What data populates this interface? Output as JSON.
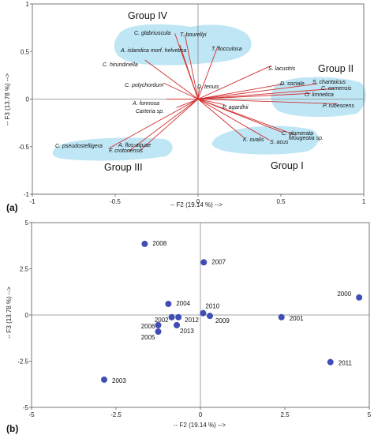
{
  "chart_data": [
    {
      "panel_label": "(a)",
      "type": "biplot",
      "xlabel": "-- F2 (19.14 %) -->",
      "ylabel": "-- F3 (13.78 %) -->",
      "xlim": [
        -1,
        1
      ],
      "ylim": [
        -1,
        1
      ],
      "x_ticks": [
        "-1",
        "-0.5",
        "0",
        "0.5",
        "1"
      ],
      "y_ticks": [
        "1",
        "0.5",
        "0",
        "-0.5",
        "-1"
      ],
      "grid": false,
      "vector_color": "#d32f2f",
      "group_fill": "#bfe6f5",
      "groups": [
        {
          "name": "Group IV"
        },
        {
          "name": "Group II"
        },
        {
          "name": "Group III"
        },
        {
          "name": "Group I"
        }
      ],
      "vectors": [
        {
          "name": "C. glabriuscula",
          "x": -0.14,
          "y": 0.69
        },
        {
          "name": "T. bourellyi",
          "x": -0.08,
          "y": 0.68
        },
        {
          "name": "A. islandica morf. helvetica",
          "x": -0.11,
          "y": 0.57
        },
        {
          "name": "T. flocculosa",
          "x": 0.12,
          "y": 0.56
        },
        {
          "name": "C. hirundinella",
          "x": -0.32,
          "y": 0.41
        },
        {
          "name": "C. polychordum",
          "x": -0.21,
          "y": 0.17
        },
        {
          "name": "D. tenuis",
          "x": 0.01,
          "y": 0.13
        },
        {
          "name": "S. lacustris",
          "x": 0.44,
          "y": 0.35
        },
        {
          "name": "D. sociale",
          "x": 0.52,
          "y": 0.16
        },
        {
          "name": "S. chantaicus",
          "x": 0.72,
          "y": 0.16
        },
        {
          "name": "C. comensis",
          "x": 0.82,
          "y": 0.11
        },
        {
          "name": "O. limnetica",
          "x": 0.68,
          "y": 0.06
        },
        {
          "name": "P. rubescens",
          "x": 0.84,
          "y": -0.05
        },
        {
          "name": "A. formosa",
          "x": -0.19,
          "y": 0.0
        },
        {
          "name": "Carteria sp.",
          "x": -0.13,
          "y": -0.09
        },
        {
          "name": "P. agardhii",
          "x": 0.16,
          "y": -0.06
        },
        {
          "name": "C. glomerata",
          "x": 0.51,
          "y": -0.35
        },
        {
          "name": "Mougeotia sp.",
          "x": 0.59,
          "y": -0.38
        },
        {
          "name": "K. ovalis",
          "x": 0.28,
          "y": -0.41
        },
        {
          "name": "S. acus",
          "x": 0.43,
          "y": -0.43
        },
        {
          "name": "C. pseudostelligera",
          "x": -0.54,
          "y": -0.52
        },
        {
          "name": "A. flos-aquae",
          "x": -0.35,
          "y": -0.54
        },
        {
          "name": "F. crotonensis",
          "x": -0.42,
          "y": -0.55
        }
      ]
    },
    {
      "panel_label": "(b)",
      "type": "scatter",
      "xlabel": "-- F2 (19.14 %) -->",
      "ylabel": "-- F3 (13.78 %) -->",
      "xlim": [
        -5,
        5
      ],
      "ylim": [
        -5,
        5
      ],
      "x_ticks": [
        "-5",
        "-2.5",
        "0",
        "2.5",
        "5"
      ],
      "y_ticks": [
        "5",
        "2.5",
        "0",
        "-2.5",
        "-5"
      ],
      "grid": false,
      "marker_color": "#3f4db5",
      "points": [
        {
          "label": "2008",
          "x": -1.65,
          "y": 3.85
        },
        {
          "label": "2007",
          "x": 0.1,
          "y": 2.85
        },
        {
          "label": "2004",
          "x": -0.95,
          "y": 0.6
        },
        {
          "label": "2010",
          "x": 0.08,
          "y": 0.1
        },
        {
          "label": "2009",
          "x": 0.28,
          "y": -0.05
        },
        {
          "label": "2002",
          "x": -0.85,
          "y": -0.12
        },
        {
          "label": "2012",
          "x": -0.65,
          "y": -0.12
        },
        {
          "label": "2006",
          "x": -1.25,
          "y": -0.55
        },
        {
          "label": "2013",
          "x": -0.7,
          "y": -0.55
        },
        {
          "label": "2005",
          "x": -1.25,
          "y": -0.9
        },
        {
          "label": "2001",
          "x": 2.4,
          "y": -0.12
        },
        {
          "label": "2000",
          "x": 4.7,
          "y": 0.95
        },
        {
          "label": "2011",
          "x": 3.85,
          "y": -2.55
        },
        {
          "label": "2003",
          "x": -2.85,
          "y": -3.5
        }
      ]
    }
  ]
}
